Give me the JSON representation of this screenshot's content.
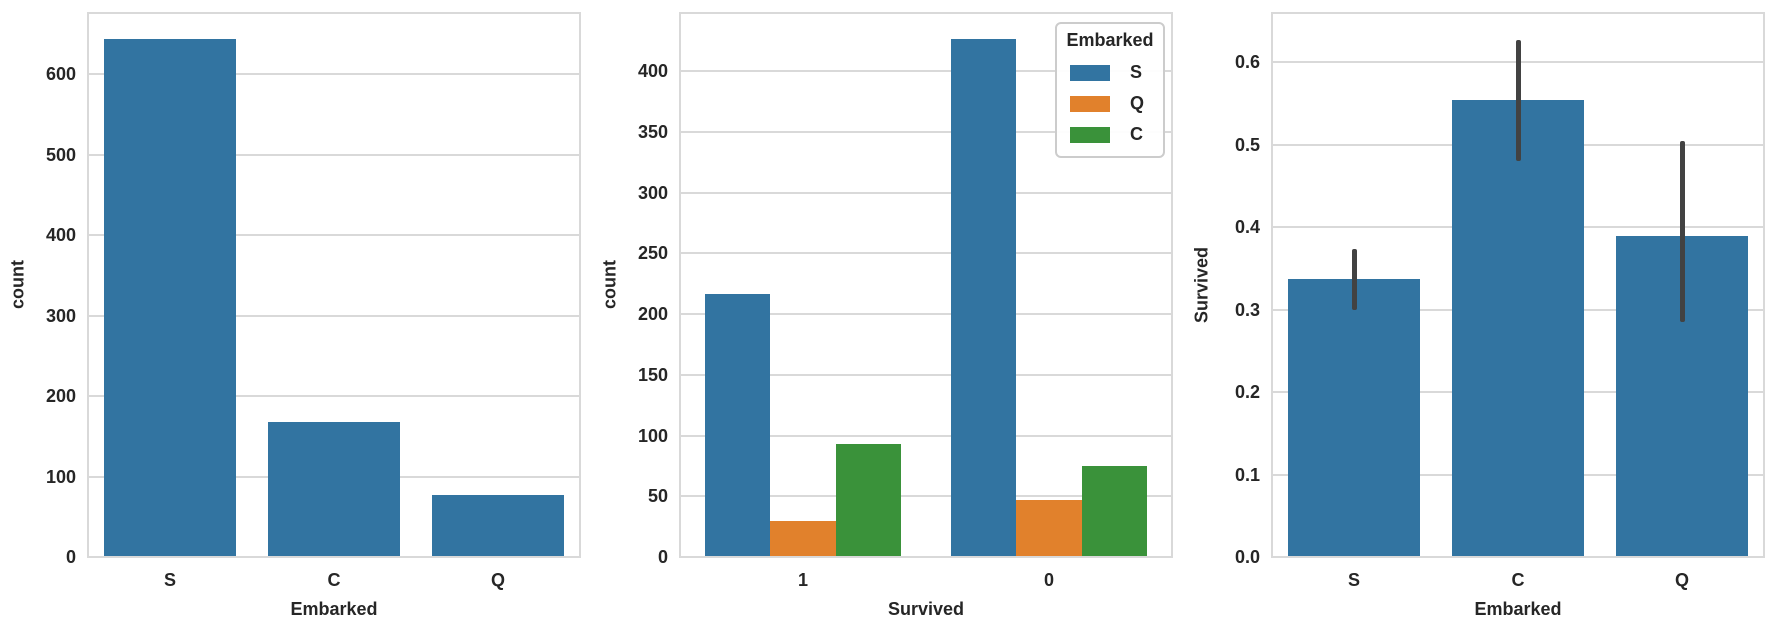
{
  "figure": {
    "background": "#ffffff",
    "grid_color": "#d9d9d9",
    "spine_color": "#d9d9d9",
    "text_color": "#262626",
    "errorbar_color": "#424242",
    "bar_blue": "#3274a1",
    "bar_orange": "#e1812c",
    "bar_green": "#3a923a"
  },
  "chart_data": [
    {
      "type": "bar",
      "title": "",
      "xlabel": "Embarked",
      "ylabel": "count",
      "categories": [
        "S",
        "C",
        "Q"
      ],
      "values": [
        644,
        168,
        77
      ],
      "bar_color": "#3274a1",
      "yticks": [
        0,
        100,
        200,
        300,
        400,
        500,
        600
      ],
      "ytick_labels": [
        "0",
        "100",
        "200",
        "300",
        "400",
        "500",
        "600"
      ],
      "ylim": [
        0,
        676
      ],
      "grid": true,
      "bar_width_fraction": 0.8,
      "legend": null
    },
    {
      "type": "bar",
      "title": "",
      "xlabel": "Survived",
      "ylabel": "count",
      "categories": [
        "1",
        "0"
      ],
      "series": [
        {
          "name": "S",
          "color": "#3274a1",
          "values": [
            217,
            427
          ]
        },
        {
          "name": "Q",
          "color": "#e1812c",
          "values": [
            30,
            47
          ]
        },
        {
          "name": "C",
          "color": "#3a923a",
          "values": [
            93,
            75
          ]
        }
      ],
      "yticks": [
        0,
        50,
        100,
        150,
        200,
        250,
        300,
        350,
        400
      ],
      "ytick_labels": [
        "0",
        "50",
        "100",
        "150",
        "200",
        "250",
        "300",
        "350",
        "400"
      ],
      "ylim": [
        0,
        448
      ],
      "grid": true,
      "bar_width_fraction": 0.8,
      "legend": {
        "title": "Embarked",
        "position": "upper right",
        "labels": [
          "S",
          "Q",
          "C"
        ],
        "colors": [
          "#3274a1",
          "#e1812c",
          "#3a923a"
        ]
      }
    },
    {
      "type": "bar",
      "title": "",
      "xlabel": "Embarked",
      "ylabel": "Survived",
      "categories": [
        "S",
        "C",
        "Q"
      ],
      "values": [
        0.337,
        0.554,
        0.39
      ],
      "errorbars": [
        [
          0.3,
          0.374
        ],
        [
          0.48,
          0.627
        ],
        [
          0.285,
          0.505
        ]
      ],
      "errorbar_color": "#424242",
      "bar_color": "#3274a1",
      "yticks": [
        0,
        0.1,
        0.2,
        0.3,
        0.4,
        0.5,
        0.6
      ],
      "ytick_labels": [
        "0.0",
        "0.1",
        "0.2",
        "0.3",
        "0.4",
        "0.5",
        "0.6"
      ],
      "ylim": [
        0,
        0.66
      ],
      "grid": true,
      "bar_width_fraction": 0.8,
      "legend": null
    }
  ]
}
